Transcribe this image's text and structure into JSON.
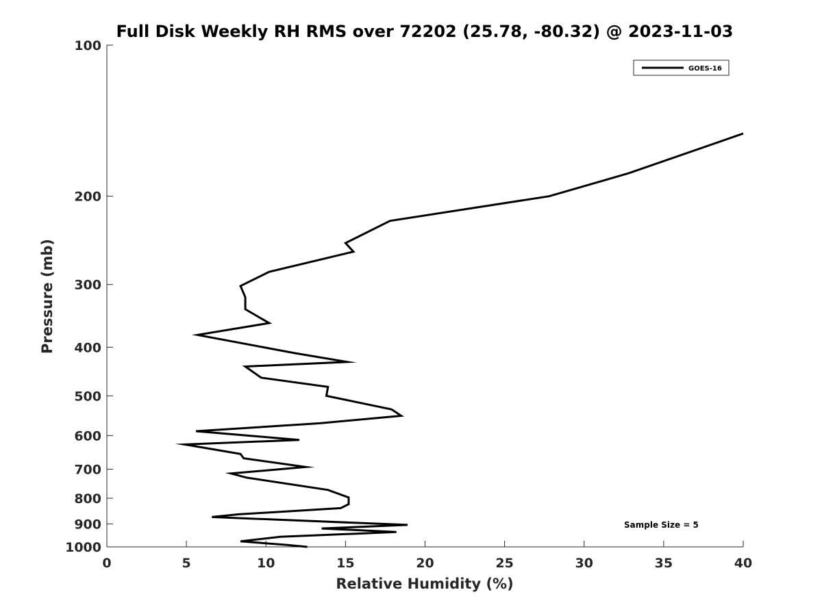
{
  "chart_data": {
    "type": "line",
    "title": "Full Disk Weekly RH RMS over 72202 (25.78, -80.32) @ 2023-11-03",
    "xlabel": "Relative Humidity (%)",
    "ylabel": "Pressure (mb)",
    "xlim": [
      0,
      40
    ],
    "ylim": [
      100,
      1000
    ],
    "y_scale": "log",
    "y_reversed": true,
    "grid": false,
    "legend_position": "top-right",
    "x_ticks": [
      "0",
      "5",
      "10",
      "15",
      "20",
      "25",
      "30",
      "35",
      "40"
    ],
    "y_ticks": [
      "100",
      "200",
      "300",
      "400",
      "500",
      "600",
      "700",
      "800",
      "900",
      "1000"
    ],
    "series": [
      {
        "name": "GOES-16",
        "color": "#000000",
        "x": [
          40.0,
          32.8,
          27.8,
          17.8,
          15.0,
          15.5,
          10.2,
          8.4,
          8.7,
          8.7,
          10.2,
          5.7,
          11.8,
          15.1,
          8.7,
          9.7,
          13.9,
          13.8,
          17.9,
          18.5,
          13.4,
          5.6,
          12.1,
          4.9,
          8.4,
          8.6,
          12.5,
          7.8,
          8.8,
          13.9,
          15.2,
          15.2,
          14.7,
          8.3,
          6.6,
          18.9,
          13.5,
          18.2,
          10.9,
          8.4,
          11.3,
          12.6
        ],
        "y": [
          150,
          180,
          200,
          224,
          248,
          258,
          283,
          302,
          318,
          336,
          358,
          378,
          411,
          428,
          437,
          460,
          480,
          500,
          532,
          548,
          567,
          588,
          612,
          625,
          653,
          666,
          693,
          714,
          728,
          770,
          797,
          822,
          837,
          861,
          872,
          904,
          919,
          934,
          955,
          975,
          991,
          1004
        ]
      }
    ],
    "annotations": [
      "Sample Size = 5"
    ]
  }
}
